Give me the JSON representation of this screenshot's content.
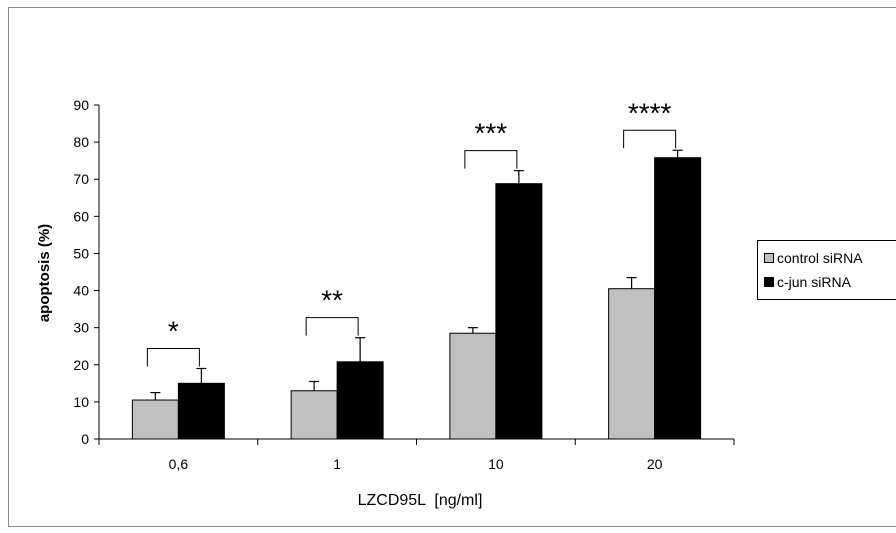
{
  "chart_data": {
    "type": "bar",
    "title": "",
    "xlabel": "LZCD95L  [ng/ml]",
    "ylabel": "apoptosis (%)",
    "ylim": [
      0,
      90
    ],
    "yticks": [
      0,
      10,
      20,
      30,
      40,
      50,
      60,
      70,
      80,
      90
    ],
    "categories": [
      "0,6",
      "1",
      "10",
      "20"
    ],
    "series": [
      {
        "name": "control siRNA",
        "color": "#c0c0c0",
        "values": [
          10.5,
          13,
          28.5,
          40.5
        ],
        "errors": [
          2,
          2.5,
          1.5,
          3
        ]
      },
      {
        "name": "c-jun siRNA",
        "color": "#000000",
        "values": [
          15,
          20.8,
          68.8,
          75.8
        ],
        "errors": [
          4,
          6.5,
          3.5,
          2
        ]
      }
    ],
    "significance": [
      "*",
      "**",
      "***",
      "****"
    ],
    "legend_position": "right",
    "grid": false
  }
}
